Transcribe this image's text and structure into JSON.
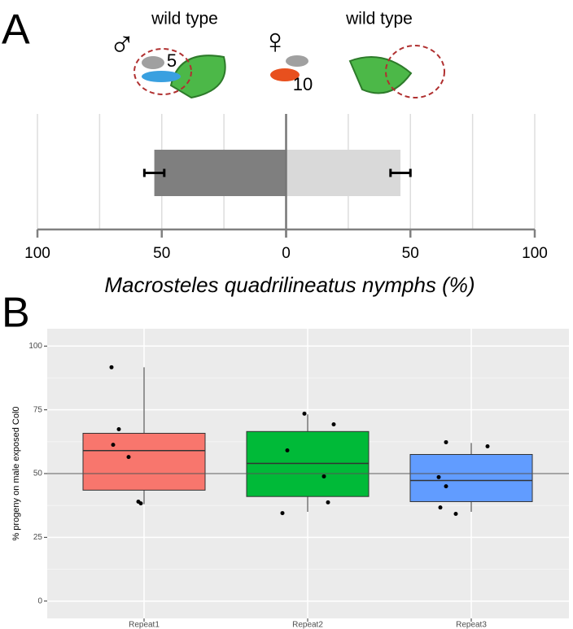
{
  "panel_labels": [
    "A",
    "B"
  ],
  "header": {
    "male_symbol": "♂",
    "female_symbol": "♀",
    "left_label": "wild type",
    "right_label": "wild type",
    "male_count": "5",
    "female_count": "10"
  },
  "chart_data": [
    {
      "type": "diverging_bar",
      "xlabel": "Macrosteles quadrilineatus nymphs (%)",
      "xlim": [
        -100,
        100
      ],
      "xticks": [
        {
          "value": -100,
          "label": "100"
        },
        {
          "value": -50,
          "label": "50"
        },
        0,
        50,
        100
      ],
      "minor_xticks": [
        -75,
        -25,
        25,
        75
      ],
      "grid": true,
      "series": [
        {
          "color": "#7f7f7f",
          "values": [
            -53
          ],
          "errors": [
            4
          ]
        },
        {
          "color": "#d9d9d9",
          "values": [
            46
          ],
          "errors": [
            4
          ]
        }
      ]
    },
    {
      "type": "box",
      "ylabel": "% progeny on male exposed Col0",
      "categories": [
        "Repeat1",
        "Repeat2",
        "Repeat3"
      ],
      "colors": [
        "#F8766D",
        "#00BA38",
        "#619CFF"
      ],
      "ylim": [
        -6.8,
        106.8
      ],
      "yticks": [
        0,
        25,
        50,
        75,
        100
      ],
      "minor_yticks": [
        12.5,
        37.5,
        62.5,
        87.5
      ],
      "hline": 50,
      "grid": true,
      "whisker_low": [
        38,
        35,
        35
      ],
      "q1": [
        43.5,
        41,
        39
      ],
      "median": [
        59,
        54,
        47.3
      ],
      "q3": [
        65.8,
        66.5,
        57.5
      ],
      "whisker_high": [
        91.7,
        73.2,
        62
      ],
      "points": [
        [
          91.7,
          67.4,
          61.3,
          56.5,
          39,
          38.3
        ],
        [
          73.5,
          69.3,
          59.1,
          48.9,
          38.7,
          34.5
        ],
        [
          62.3,
          60.7,
          48.6,
          45,
          36.7,
          34.2
        ]
      ]
    }
  ]
}
